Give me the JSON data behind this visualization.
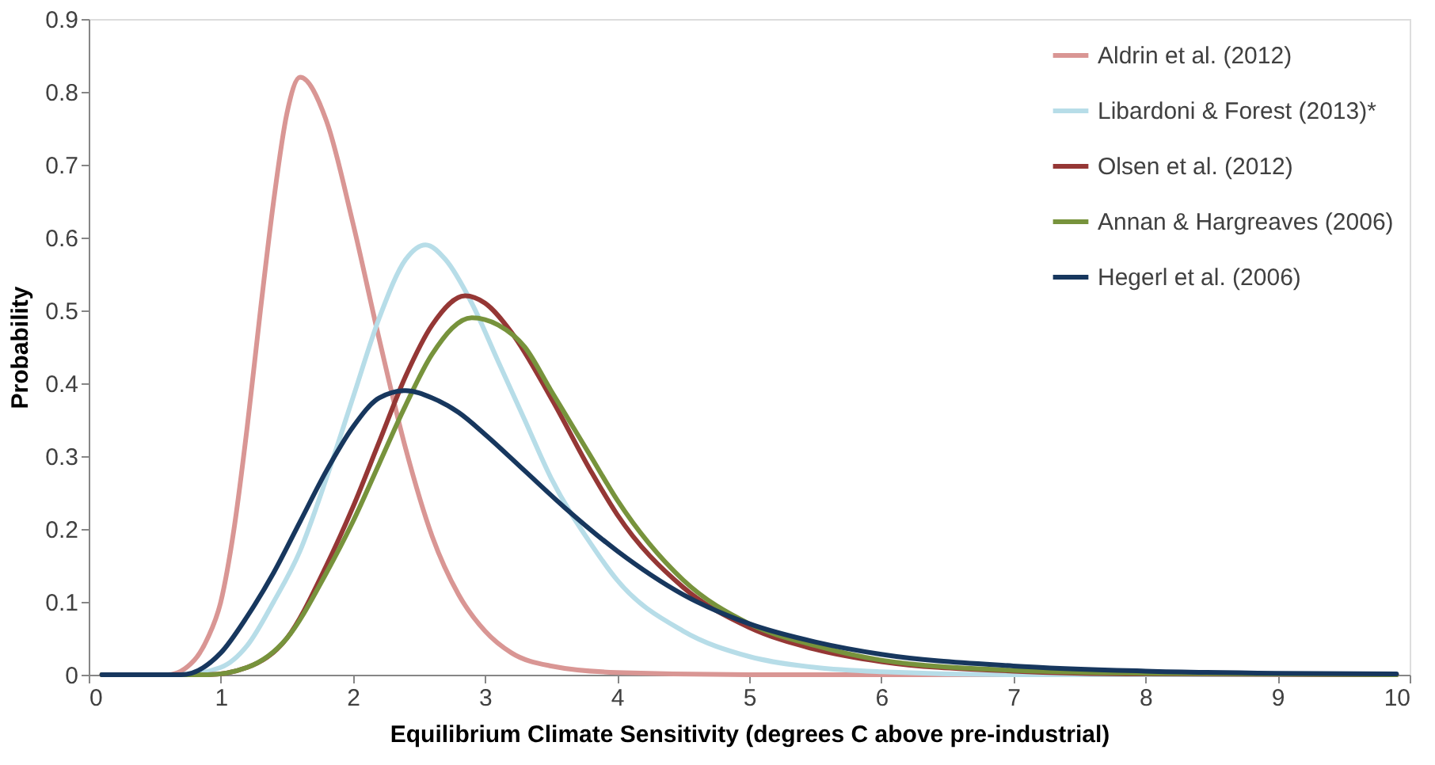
{
  "chart_data": {
    "type": "line",
    "xlabel": "Equilibrium Climate Sensitivity (degrees C above pre-industrial)",
    "ylabel": "Probability",
    "xlim": [
      0,
      10
    ],
    "xticks": [
      0,
      1,
      2,
      3,
      4,
      5,
      6,
      7,
      8,
      9,
      10
    ],
    "ylim": [
      0,
      0.9
    ],
    "yticks": [
      0,
      0.1,
      0.2,
      0.3,
      0.4,
      0.5,
      0.6,
      0.7,
      0.8,
      0.9
    ],
    "grid": false,
    "legend": "top right",
    "marker": "none",
    "line_style": "solid",
    "series": [
      {
        "name": "Aldrin et al. (2012)",
        "color": "#d99694",
        "x": [
          0.1,
          0.6,
          0.8,
          0.9,
          1.0,
          1.1,
          1.2,
          1.3,
          1.4,
          1.5,
          1.6,
          1.8,
          2.0,
          2.2,
          2.4,
          2.6,
          2.8,
          3.0,
          3.2,
          3.5,
          4.0,
          5.0,
          9.9
        ],
        "values": [
          0,
          0,
          0.02,
          0.05,
          0.1,
          0.2,
          0.34,
          0.5,
          0.65,
          0.77,
          0.82,
          0.76,
          0.62,
          0.46,
          0.31,
          0.19,
          0.11,
          0.06,
          0.03,
          0.012,
          0.003,
          0,
          0
        ]
      },
      {
        "name": "Libardoni & Forest (2013)*",
        "color": "#b7dde8",
        "x": [
          0.1,
          0.7,
          1.0,
          1.2,
          1.4,
          1.6,
          1.8,
          2.0,
          2.2,
          2.4,
          2.55,
          2.7,
          2.9,
          3.1,
          3.3,
          3.5,
          3.8,
          4.0,
          4.5,
          5.0,
          5.5,
          6.0,
          7.0,
          9.9
        ],
        "values": [
          0,
          0,
          0.01,
          0.04,
          0.1,
          0.17,
          0.27,
          0.38,
          0.49,
          0.57,
          0.59,
          0.57,
          0.51,
          0.43,
          0.35,
          0.27,
          0.18,
          0.13,
          0.06,
          0.025,
          0.01,
          0.004,
          0,
          0
        ]
      },
      {
        "name": "Olsen et al. (2012)",
        "color": "#953735",
        "x": [
          0.1,
          0.9,
          1.2,
          1.5,
          1.8,
          2.0,
          2.2,
          2.4,
          2.6,
          2.85,
          3.0,
          3.2,
          3.5,
          3.8,
          4.0,
          4.5,
          5.0,
          5.5,
          6.0,
          7.0,
          8.0,
          9.9
        ],
        "values": [
          0,
          0,
          0.01,
          0.05,
          0.15,
          0.23,
          0.32,
          0.41,
          0.48,
          0.52,
          0.51,
          0.47,
          0.38,
          0.28,
          0.22,
          0.12,
          0.065,
          0.035,
          0.018,
          0.005,
          0.001,
          0
        ]
      },
      {
        "name": "Annan & Hargreaves (2006)",
        "color": "#77933c",
        "x": [
          0.1,
          0.9,
          1.2,
          1.5,
          1.8,
          2.0,
          2.2,
          2.4,
          2.6,
          2.9,
          3.1,
          3.3,
          3.5,
          3.8,
          4.0,
          4.5,
          5.0,
          5.5,
          6.0,
          7.0,
          8.0,
          9.9
        ],
        "values": [
          0,
          0,
          0.01,
          0.05,
          0.14,
          0.21,
          0.29,
          0.37,
          0.44,
          0.49,
          0.48,
          0.45,
          0.39,
          0.3,
          0.24,
          0.13,
          0.07,
          0.04,
          0.02,
          0.006,
          0.002,
          0
        ]
      },
      {
        "name": "Hegerl et al. (2006)",
        "color": "#17375e",
        "x": [
          0.1,
          0.7,
          1.0,
          1.2,
          1.4,
          1.6,
          1.8,
          2.0,
          2.2,
          2.4,
          2.6,
          2.8,
          3.0,
          3.3,
          3.6,
          4.0,
          4.5,
          5.0,
          5.5,
          6.0,
          7.0,
          8.0,
          9.0,
          9.9
        ],
        "values": [
          0,
          0,
          0.03,
          0.08,
          0.14,
          0.21,
          0.28,
          0.34,
          0.38,
          0.39,
          0.38,
          0.36,
          0.33,
          0.28,
          0.23,
          0.17,
          0.11,
          0.07,
          0.045,
          0.028,
          0.012,
          0.005,
          0.002,
          0.001
        ]
      }
    ]
  }
}
